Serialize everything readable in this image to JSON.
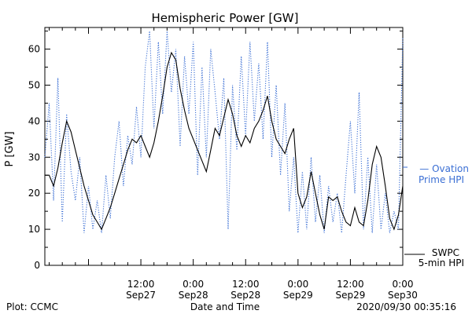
{
  "chart_data": {
    "type": "line",
    "title": "Hemispheric Power [GW]",
    "xlabel": "Date and Time",
    "ylabel": "P [GW]",
    "ylim": [
      0,
      66
    ],
    "xlim": [
      "2020-09-26 14:00",
      "2020-09-30 00:00"
    ],
    "grid": false,
    "y_ticks": [
      0,
      10,
      20,
      30,
      40,
      50,
      60
    ],
    "x_ticks": [
      {
        "at": "2020-09-27 12:00",
        "label_time": "12:00",
        "label_date": "Sep27"
      },
      {
        "at": "2020-09-28 00:00",
        "label_time": "0:00",
        "label_date": "Sep28"
      },
      {
        "at": "2020-09-28 12:00",
        "label_time": "12:00",
        "label_date": "Sep28"
      },
      {
        "at": "2020-09-29 00:00",
        "label_time": "0:00",
        "label_date": "Sep29"
      },
      {
        "at": "2020-09-29 12:00",
        "label_time": "12:00",
        "label_date": "Sep29"
      },
      {
        "at": "2020-09-30 00:00",
        "label_time": "0:00",
        "label_date": "Sep30"
      }
    ],
    "series": [
      {
        "name": "SWPC 5-min HPI",
        "style": "solid",
        "color": "#000000",
        "points": [
          [
            "2020-09-26 14:00",
            25
          ],
          [
            "2020-09-26 15:00",
            25
          ],
          [
            "2020-09-26 16:00",
            22
          ],
          [
            "2020-09-26 17:00",
            27
          ],
          [
            "2020-09-26 18:00",
            34
          ],
          [
            "2020-09-26 19:00",
            40
          ],
          [
            "2020-09-26 20:00",
            37
          ],
          [
            "2020-09-26 21:00",
            32
          ],
          [
            "2020-09-26 22:00",
            27
          ],
          [
            "2020-09-26 23:00",
            22
          ],
          [
            "2020-09-27 00:00",
            18
          ],
          [
            "2020-09-27 01:00",
            14
          ],
          [
            "2020-09-27 02:00",
            12
          ],
          [
            "2020-09-27 03:00",
            10
          ],
          [
            "2020-09-27 04:00",
            13
          ],
          [
            "2020-09-27 05:00",
            16
          ],
          [
            "2020-09-27 06:00",
            20
          ],
          [
            "2020-09-27 07:00",
            24
          ],
          [
            "2020-09-27 08:00",
            28
          ],
          [
            "2020-09-27 09:00",
            32
          ],
          [
            "2020-09-27 10:00",
            35
          ],
          [
            "2020-09-27 11:00",
            34
          ],
          [
            "2020-09-27 12:00",
            36
          ],
          [
            "2020-09-27 13:00",
            33
          ],
          [
            "2020-09-27 14:00",
            30
          ],
          [
            "2020-09-27 15:00",
            34
          ],
          [
            "2020-09-27 16:00",
            40
          ],
          [
            "2020-09-27 17:00",
            47
          ],
          [
            "2020-09-27 18:00",
            55
          ],
          [
            "2020-09-27 19:00",
            59
          ],
          [
            "2020-09-27 20:00",
            57
          ],
          [
            "2020-09-27 21:00",
            49
          ],
          [
            "2020-09-27 22:00",
            43
          ],
          [
            "2020-09-27 23:00",
            38
          ],
          [
            "2020-09-28 00:00",
            35
          ],
          [
            "2020-09-28 01:00",
            32
          ],
          [
            "2020-09-28 02:00",
            29
          ],
          [
            "2020-09-28 03:00",
            26
          ],
          [
            "2020-09-28 04:00",
            32
          ],
          [
            "2020-09-28 05:00",
            38
          ],
          [
            "2020-09-28 06:00",
            36
          ],
          [
            "2020-09-28 07:00",
            41
          ],
          [
            "2020-09-28 08:00",
            46
          ],
          [
            "2020-09-28 09:00",
            42
          ],
          [
            "2020-09-28 10:00",
            36
          ],
          [
            "2020-09-28 11:00",
            33
          ],
          [
            "2020-09-28 12:00",
            36
          ],
          [
            "2020-09-28 13:00",
            34
          ],
          [
            "2020-09-28 14:00",
            38
          ],
          [
            "2020-09-28 15:00",
            40
          ],
          [
            "2020-09-28 16:00",
            43
          ],
          [
            "2020-09-28 17:00",
            47
          ],
          [
            "2020-09-28 18:00",
            40
          ],
          [
            "2020-09-28 19:00",
            35
          ],
          [
            "2020-09-28 20:00",
            33
          ],
          [
            "2020-09-28 21:00",
            31
          ],
          [
            "2020-09-28 22:00",
            35
          ],
          [
            "2020-09-28 23:00",
            38
          ],
          [
            "2020-09-29 00:00",
            20
          ],
          [
            "2020-09-29 01:00",
            16
          ],
          [
            "2020-09-29 02:00",
            19
          ],
          [
            "2020-09-29 03:00",
            26
          ],
          [
            "2020-09-29 04:00",
            20
          ],
          [
            "2020-09-29 05:00",
            14
          ],
          [
            "2020-09-29 06:00",
            10
          ],
          [
            "2020-09-29 07:00",
            19
          ],
          [
            "2020-09-29 08:00",
            18
          ],
          [
            "2020-09-29 09:00",
            19
          ],
          [
            "2020-09-29 10:00",
            15
          ],
          [
            "2020-09-29 11:00",
            12
          ],
          [
            "2020-09-29 12:00",
            11
          ],
          [
            "2020-09-29 13:00",
            16
          ],
          [
            "2020-09-29 14:00",
            12
          ],
          [
            "2020-09-29 15:00",
            11
          ],
          [
            "2020-09-29 16:00",
            18
          ],
          [
            "2020-09-29 17:00",
            28
          ],
          [
            "2020-09-29 18:00",
            33
          ],
          [
            "2020-09-29 19:00",
            30
          ],
          [
            "2020-09-29 20:00",
            22
          ],
          [
            "2020-09-29 21:00",
            13
          ],
          [
            "2020-09-29 22:00",
            10
          ],
          [
            "2020-09-29 23:00",
            14
          ],
          [
            "2020-09-30 00:00",
            22
          ]
        ]
      },
      {
        "name": "Ovation Prime HPI",
        "style": "dotted",
        "color": "#3b6fd4",
        "points": [
          [
            "2020-09-26 14:00",
            30
          ],
          [
            "2020-09-26 15:00",
            45
          ],
          [
            "2020-09-26 16:00",
            18
          ],
          [
            "2020-09-26 17:00",
            52
          ],
          [
            "2020-09-26 18:00",
            12
          ],
          [
            "2020-09-26 19:00",
            42
          ],
          [
            "2020-09-26 20:00",
            26
          ],
          [
            "2020-09-26 21:00",
            18
          ],
          [
            "2020-09-26 22:00",
            30
          ],
          [
            "2020-09-26 23:00",
            9
          ],
          [
            "2020-09-27 00:00",
            22
          ],
          [
            "2020-09-27 01:00",
            10
          ],
          [
            "2020-09-27 02:00",
            18
          ],
          [
            "2020-09-27 03:00",
            9
          ],
          [
            "2020-09-27 04:00",
            25
          ],
          [
            "2020-09-27 05:00",
            13
          ],
          [
            "2020-09-27 06:00",
            30
          ],
          [
            "2020-09-27 07:00",
            40
          ],
          [
            "2020-09-27 08:00",
            22
          ],
          [
            "2020-09-27 09:00",
            36
          ],
          [
            "2020-09-27 10:00",
            28
          ],
          [
            "2020-09-27 11:00",
            44
          ],
          [
            "2020-09-27 12:00",
            30
          ],
          [
            "2020-09-27 13:00",
            55
          ],
          [
            "2020-09-27 14:00",
            65
          ],
          [
            "2020-09-27 15:00",
            38
          ],
          [
            "2020-09-27 16:00",
            62
          ],
          [
            "2020-09-27 17:00",
            42
          ],
          [
            "2020-09-27 18:00",
            65
          ],
          [
            "2020-09-27 19:00",
            48
          ],
          [
            "2020-09-27 20:00",
            60
          ],
          [
            "2020-09-27 21:00",
            33
          ],
          [
            "2020-09-27 22:00",
            58
          ],
          [
            "2020-09-27 23:00",
            42
          ],
          [
            "2020-09-28 00:00",
            62
          ],
          [
            "2020-09-28 01:00",
            25
          ],
          [
            "2020-09-28 02:00",
            55
          ],
          [
            "2020-09-28 03:00",
            30
          ],
          [
            "2020-09-28 04:00",
            60
          ],
          [
            "2020-09-28 05:00",
            48
          ],
          [
            "2020-09-28 06:00",
            35
          ],
          [
            "2020-09-28 07:00",
            52
          ],
          [
            "2020-09-28 08:00",
            10
          ],
          [
            "2020-09-28 09:00",
            50
          ],
          [
            "2020-09-28 10:00",
            32
          ],
          [
            "2020-09-28 11:00",
            58
          ],
          [
            "2020-09-28 12:00",
            36
          ],
          [
            "2020-09-28 13:00",
            62
          ],
          [
            "2020-09-28 14:00",
            40
          ],
          [
            "2020-09-28 15:00",
            56
          ],
          [
            "2020-09-28 16:00",
            35
          ],
          [
            "2020-09-28 17:00",
            62
          ],
          [
            "2020-09-28 18:00",
            30
          ],
          [
            "2020-09-28 19:00",
            50
          ],
          [
            "2020-09-28 20:00",
            25
          ],
          [
            "2020-09-28 21:00",
            45
          ],
          [
            "2020-09-28 22:00",
            15
          ],
          [
            "2020-09-28 23:00",
            30
          ],
          [
            "2020-09-29 00:00",
            9
          ],
          [
            "2020-09-29 01:00",
            26
          ],
          [
            "2020-09-29 02:00",
            10
          ],
          [
            "2020-09-29 03:00",
            30
          ],
          [
            "2020-09-29 04:00",
            12
          ],
          [
            "2020-09-29 05:00",
            25
          ],
          [
            "2020-09-29 06:00",
            9
          ],
          [
            "2020-09-29 07:00",
            22
          ],
          [
            "2020-09-29 08:00",
            12
          ],
          [
            "2020-09-29 09:00",
            20
          ],
          [
            "2020-09-29 10:00",
            9
          ],
          [
            "2020-09-29 11:00",
            25
          ],
          [
            "2020-09-29 12:00",
            40
          ],
          [
            "2020-09-29 13:00",
            20
          ],
          [
            "2020-09-29 14:00",
            48
          ],
          [
            "2020-09-29 15:00",
            10
          ],
          [
            "2020-09-29 16:00",
            30
          ],
          [
            "2020-09-29 17:00",
            9
          ],
          [
            "2020-09-29 18:00",
            28
          ],
          [
            "2020-09-29 19:00",
            10
          ],
          [
            "2020-09-29 20:00",
            20
          ],
          [
            "2020-09-29 21:00",
            9
          ],
          [
            "2020-09-29 22:00",
            15
          ],
          [
            "2020-09-29 23:00",
            10
          ],
          [
            "2020-09-30 00:00",
            63
          ]
        ]
      }
    ],
    "legend": [
      {
        "series": "Ovation Prime HPI",
        "line1": "— Ovation",
        "line2": "Prime HPI",
        "color": "#3b6fd4"
      },
      {
        "series": "SWPC 5-min HPI",
        "line1": "SWPC",
        "line2": "5-min HPI",
        "color": "#000000"
      }
    ],
    "legend_placement": "right"
  },
  "footer": {
    "left": "Plot: CCMC",
    "right": "2020/09/30 00:35:16"
  }
}
